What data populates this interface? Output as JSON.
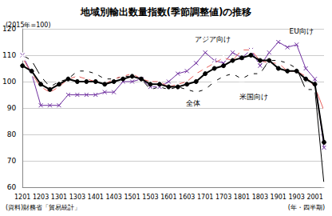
{
  "chart_data": {
    "type": "line",
    "title": "地域別輸出数量指数(季節調整値)の推移",
    "ylabel": "(2015年=100)",
    "xlabel": "(年・四半期)",
    "source": "(資料)財務省「貿易統計」",
    "categories": [
      "1201",
      null,
      "1203",
      null,
      "1301",
      null,
      "1303",
      null,
      "1401",
      null,
      "1403",
      null,
      "1501",
      null,
      "1503",
      null,
      "1601",
      null,
      "1603",
      null,
      "1701",
      null,
      "1703",
      null,
      "1801",
      null,
      "1803",
      null,
      "1901",
      null,
      "1903",
      null,
      "2001",
      null
    ],
    "ylim": [
      60,
      120
    ],
    "yticks": [
      60,
      70,
      80,
      90,
      100,
      110,
      120
    ],
    "grid": true,
    "series": [
      {
        "name": "全体",
        "color": "#000000",
        "marker": "circle",
        "line_style": "solid",
        "values": [
          106,
          104,
          99,
          97,
          99,
          101,
          100,
          100,
          100,
          99,
          100,
          101,
          102,
          101,
          99,
          99,
          98,
          98,
          99,
          100,
          103,
          105,
          106,
          108,
          109,
          110,
          108,
          108,
          105,
          104,
          104,
          101,
          99,
          77
        ]
      },
      {
        "name": "米国向け",
        "color": "#000000",
        "marker": "square",
        "line_style": "solid",
        "values": [
          110,
          108,
          102,
          98,
          100,
          101,
          104,
          104,
          103,
          101,
          101,
          102,
          102,
          101,
          97,
          98,
          97,
          98,
          97,
          96,
          97,
          100,
          102,
          103,
          101,
          103,
          103,
          108,
          108,
          107,
          105,
          97,
          97,
          61
        ]
      },
      {
        "name": "EU向け",
        "color": "#7030a0",
        "marker": "x",
        "line_style": "solid",
        "values": [
          110,
          103,
          91,
          91,
          91,
          95,
          95,
          95,
          95,
          96,
          96,
          100,
          100,
          101,
          98,
          98,
          100,
          103,
          104,
          107,
          111,
          108,
          107,
          111,
          109,
          112,
          106,
          111,
          115,
          113,
          114,
          105,
          101,
          75
        ]
      },
      {
        "name": "アジア向け",
        "color": "#e8605c",
        "marker": "triangle",
        "line_style": "solid",
        "values": [
          109,
          103,
          98,
          96,
          98,
          101,
          102,
          101,
          100,
          99,
          101,
          102,
          103,
          101,
          100,
          100,
          98,
          99,
          100,
          103,
          105,
          107,
          109,
          108,
          112,
          112,
          108,
          107,
          107,
          104,
          104,
          102,
          98,
          89
        ]
      }
    ]
  }
}
